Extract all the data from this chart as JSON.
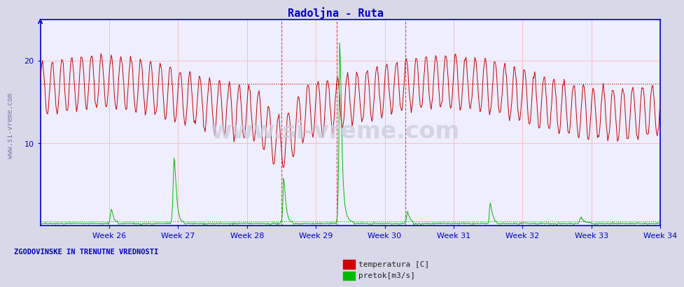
{
  "title": "Radoljna - Ruta",
  "title_color": "#0000cc",
  "title_fontsize": 11,
  "bg_color": "#d8d8e8",
  "plot_bg_color": "#eeeeff",
  "x_weeks": [
    "Week 26",
    "Week 27",
    "Week 28",
    "Week 29",
    "Week 30",
    "Week 31",
    "Week 32",
    "Week 33",
    "Week 34"
  ],
  "ylim": [
    0,
    25
  ],
  "yticks": [
    10,
    20
  ],
  "grid_color": "#ffaaaa",
  "axis_color": "#0000cc",
  "temp_color": "#cc0000",
  "flow_color": "#00bb00",
  "temp_avg_line": 17.2,
  "flow_avg_line": 0.5,
  "watermark": "www.si-vreme.com",
  "left_label": "www.si-vreme.com",
  "bottom_left_label": "ZGODOVINSKE IN TRENUTNE VREDNOSTI",
  "bottom_left_label_color": "#0000cc",
  "legend_items": [
    "temperatura [C]",
    "pretok[m3/s]"
  ],
  "legend_colors": [
    "#cc0000",
    "#00bb00"
  ],
  "n_points": 840,
  "n_weeks": 9
}
